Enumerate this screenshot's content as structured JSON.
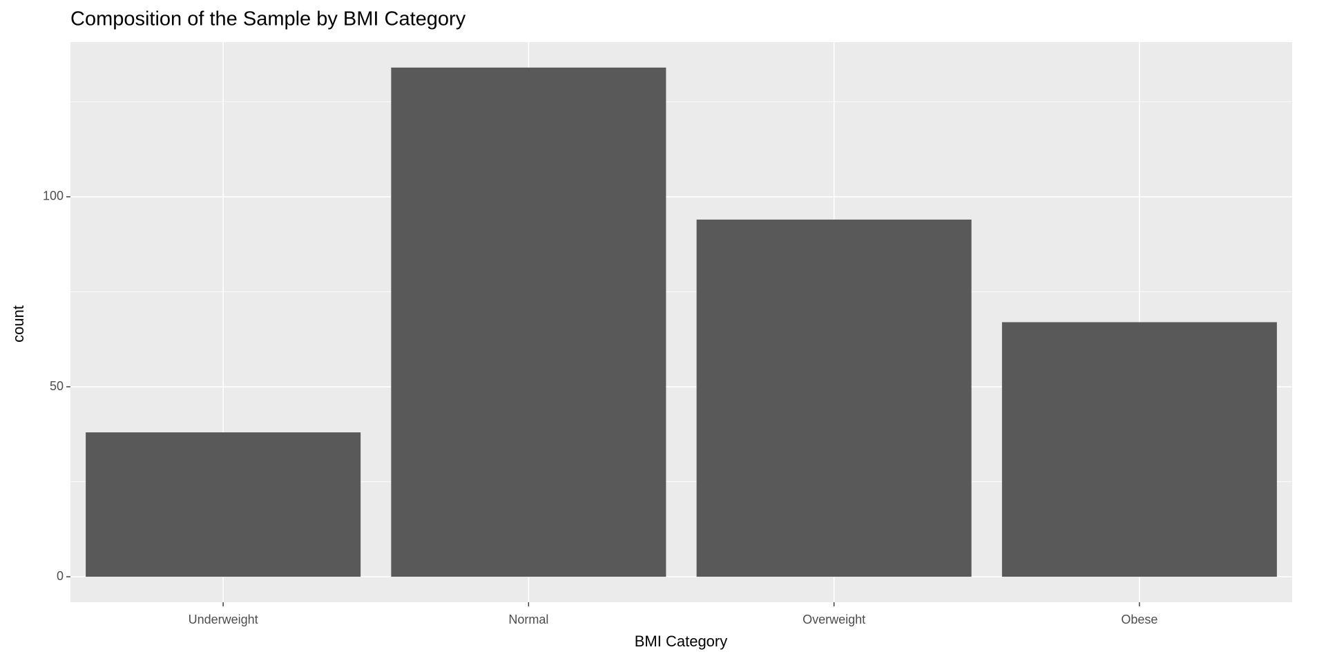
{
  "chart_data": {
    "type": "bar",
    "title": "Composition of the Sample by BMI Category",
    "x_label": "BMI Category",
    "y_label": "count",
    "categories": [
      "Underweight",
      "Normal",
      "Overweight",
      "Obese"
    ],
    "values": [
      38,
      134,
      94,
      67
    ],
    "color": "#595959",
    "ylim": [
      -6.7,
      140.7
    ],
    "yticks": [
      0,
      50,
      100
    ],
    "y_minor_ticks": [
      25,
      75,
      125
    ],
    "grid": true
  }
}
